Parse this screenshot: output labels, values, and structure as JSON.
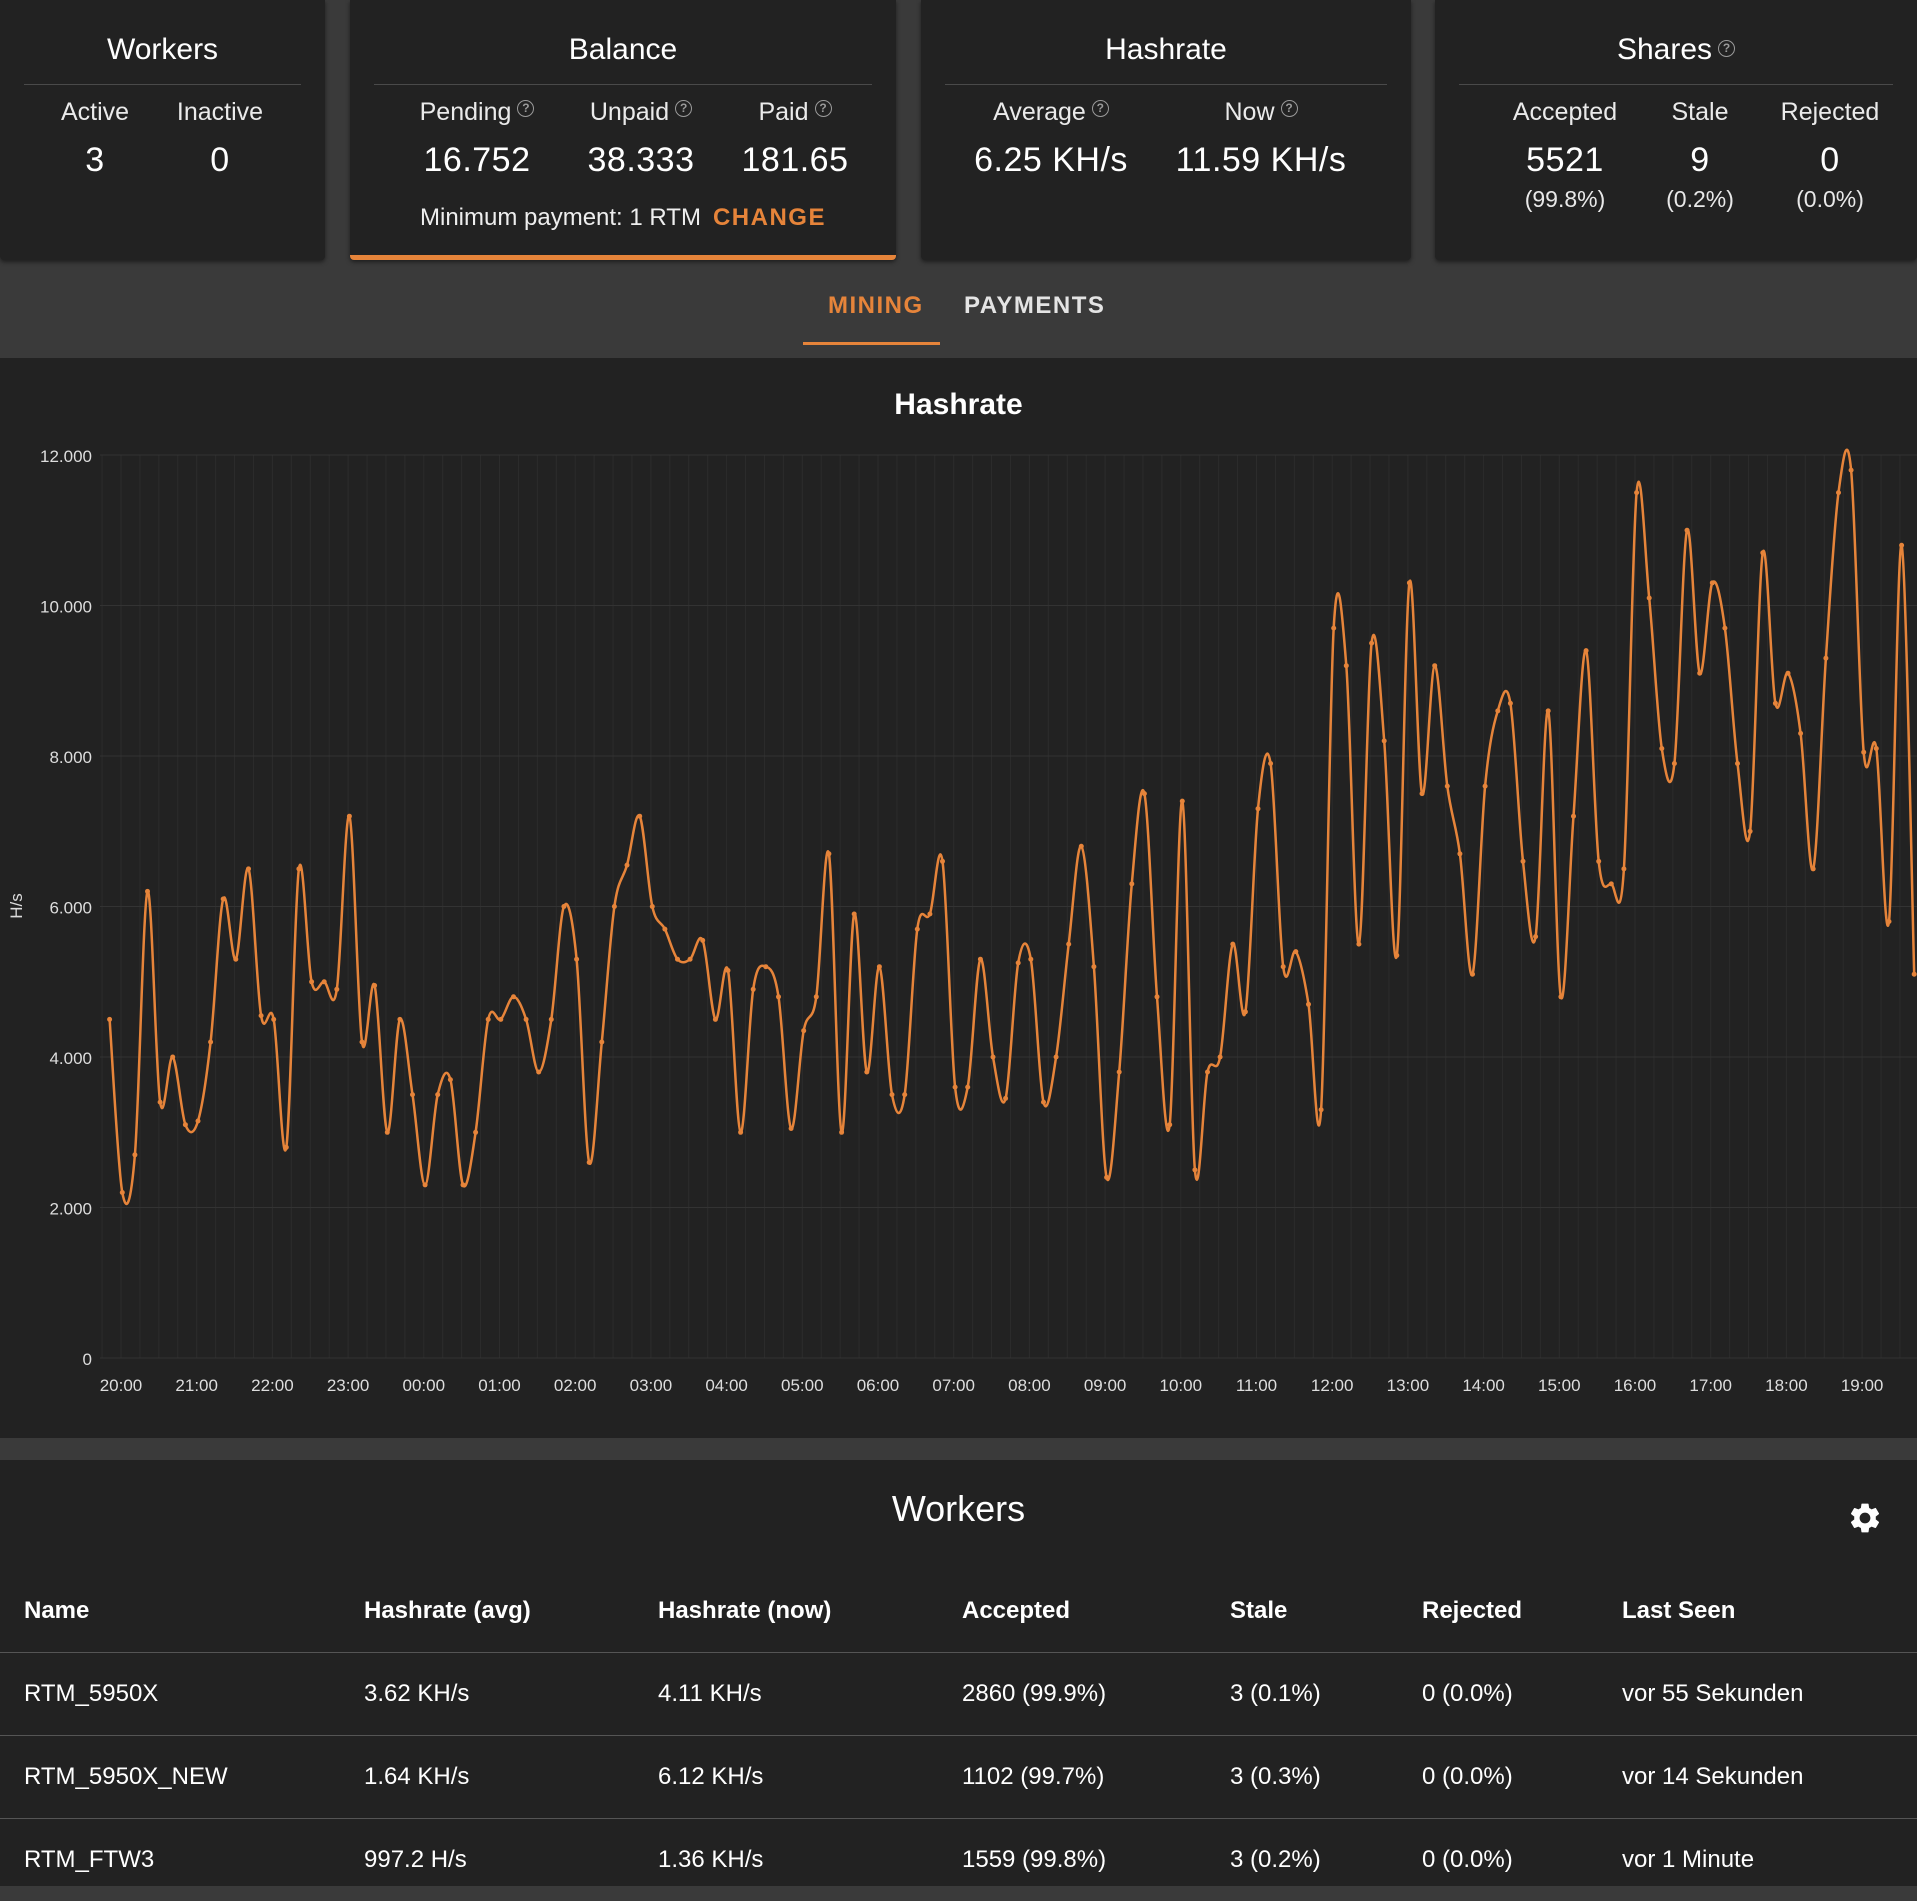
{
  "workers_card": {
    "title": "Workers",
    "active_label": "Active",
    "active_value": "3",
    "inactive_label": "Inactive",
    "inactive_value": "0"
  },
  "balance_card": {
    "title": "Balance",
    "pending_label": "Pending",
    "pending_value": "16.752",
    "unpaid_label": "Unpaid",
    "unpaid_value": "38.333",
    "paid_label": "Paid",
    "paid_value": "181.65",
    "min_payment": "Minimum payment: 1 RTM",
    "change_label": "CHANGE"
  },
  "hashrate_card": {
    "title": "Hashrate",
    "average_label": "Average",
    "average_value": "6.25 KH/s",
    "now_label": "Now",
    "now_value": "11.59 KH/s"
  },
  "shares_card": {
    "title": "Shares",
    "accepted_label": "Accepted",
    "accepted_value": "5521",
    "accepted_pct": "(99.8%)",
    "stale_label": "Stale",
    "stale_value": "9",
    "stale_pct": "(0.2%)",
    "rejected_label": "Rejected",
    "rejected_value": "0",
    "rejected_pct": "(0.0%)"
  },
  "tabs": [
    {
      "label": "MINING",
      "active": true
    },
    {
      "label": "PAYMENTS",
      "active": false
    }
  ],
  "colors": {
    "accent": "#e6843a",
    "card_bg": "#222222",
    "page_bg": "#3a3a3a"
  },
  "chart_data": {
    "type": "line",
    "title": "Hashrate",
    "ylabel": "H/s",
    "ylim": [
      0,
      12000
    ],
    "yticks": [
      0,
      2000,
      4000,
      6000,
      8000,
      10000,
      12000
    ],
    "ytick_labels": [
      "0",
      "2.000",
      "4.000",
      "6.000",
      "8.000",
      "10.000",
      "12.000"
    ],
    "xticks": [
      "20:00",
      "21:00",
      "22:00",
      "23:00",
      "00:00",
      "01:00",
      "02:00",
      "03:00",
      "04:00",
      "05:00",
      "06:00",
      "07:00",
      "08:00",
      "09:00",
      "10:00",
      "11:00",
      "12:00",
      "13:00",
      "14:00",
      "15:00",
      "16:00",
      "17:00",
      "18:00",
      "19:00"
    ],
    "x_start_hour": 19.85,
    "x_step_hours": 0.1667,
    "series": [
      {
        "values": [
          4500,
          2200,
          2700,
          6200,
          3400,
          4000,
          3100,
          3150,
          4200,
          6100,
          5300,
          6500,
          4550,
          4500,
          2800,
          6500,
          5000,
          5000,
          4900,
          7200,
          4200,
          4950,
          3000,
          4500,
          3500,
          2300,
          3500,
          3700,
          2300,
          3000,
          4500,
          4500,
          4800,
          4500,
          3800,
          4500,
          6000,
          5300,
          2600,
          4200,
          6000,
          6550,
          7200,
          6000,
          5700,
          5300,
          5300,
          5550,
          4500,
          5150,
          3000,
          4900,
          5200,
          4800,
          3050,
          4350,
          4800,
          6700,
          3000,
          5900,
          3800,
          5200,
          3500,
          3500,
          5700,
          5900,
          6600,
          3600,
          3600,
          5300,
          4000,
          3450,
          5250,
          5300,
          3400,
          4000,
          5500,
          6800,
          5200,
          2400,
          3800,
          6300,
          7500,
          4800,
          3100,
          7400,
          2500,
          3800,
          4000,
          5500,
          4600,
          7300,
          7900,
          5200,
          5400,
          4700,
          3300,
          9700,
          9200,
          5500,
          9500,
          8200,
          5350,
          10300,
          7500,
          9200,
          7600,
          6700,
          5100,
          7600,
          8600,
          8700,
          6600,
          5600,
          8600,
          4800,
          7200,
          9400,
          6600,
          6300,
          6500,
          11500,
          10100,
          8100,
          7900,
          11000,
          9100,
          10300,
          9700,
          7900,
          7000,
          10700,
          8700,
          9100,
          8300,
          6500,
          9300,
          11500,
          11800,
          8050,
          8100,
          5800,
          10800,
          5100
        ]
      }
    ]
  },
  "workers_table": {
    "title": "Workers",
    "columns": [
      "Name",
      "Hashrate (avg)",
      "Hashrate (now)",
      "Accepted",
      "Stale",
      "Rejected",
      "Last Seen"
    ],
    "rows": [
      [
        "RTM_5950X",
        "3.62 KH/s",
        "4.11 KH/s",
        "2860 (99.9%)",
        "3 (0.1%)",
        "0 (0.0%)",
        "vor 55 Sekunden"
      ],
      [
        "RTM_5950X_NEW",
        "1.64 KH/s",
        "6.12 KH/s",
        "1102 (99.7%)",
        "3 (0.3%)",
        "0 (0.0%)",
        "vor 14 Sekunden"
      ],
      [
        "RTM_FTW3",
        "997.2 H/s",
        "1.36 KH/s",
        "1559 (99.8%)",
        "3 (0.2%)",
        "0 (0.0%)",
        "vor 1 Minute"
      ]
    ]
  },
  "icons": {
    "help": "help-circle-icon",
    "settings": "gear-icon"
  }
}
